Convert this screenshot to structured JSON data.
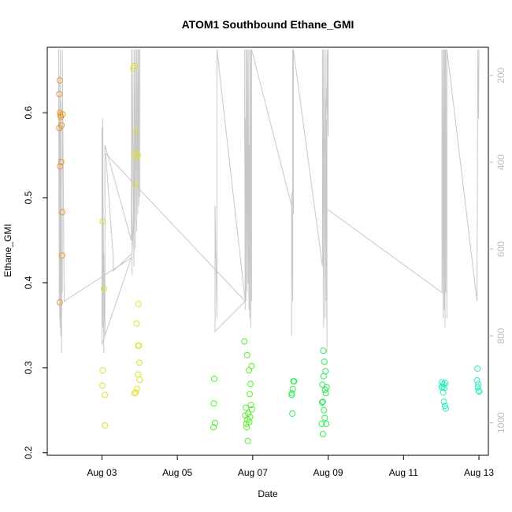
{
  "chart_data": {
    "type": "scatter",
    "title": "ATOM1 Southbound Ethane_GMI",
    "xlabel": "Date",
    "ylabel": "Ethane_GMI",
    "xlim": [
      1.55,
      13.25
    ],
    "ylim": [
      0.197,
      0.677
    ],
    "y2lim": [
      1075,
      135
    ],
    "x_ticks": [
      {
        "value": 3,
        "label": "Aug 03"
      },
      {
        "value": 5,
        "label": "Aug 05"
      },
      {
        "value": 7,
        "label": "Aug 07"
      },
      {
        "value": 9,
        "label": "Aug 09"
      },
      {
        "value": 11,
        "label": "Aug 11"
      },
      {
        "value": 13,
        "label": "Aug 13"
      }
    ],
    "y_ticks": [
      0.2,
      0.3,
      0.4,
      0.5,
      0.6
    ],
    "y2_ticks": [
      200,
      400,
      600,
      800,
      1000
    ],
    "grid": false,
    "legend": "none",
    "colors": {
      "axis": "#000000",
      "secondary_axis": "#bdbdbd",
      "altitude_line": "#c8c8c8"
    },
    "series": [
      {
        "color": "#e69a2e",
        "points": [
          [
            1.88,
            0.638
          ],
          [
            1.87,
            0.622
          ],
          [
            1.89,
            0.6
          ],
          [
            1.9,
            0.597
          ],
          [
            1.91,
            0.595
          ],
          [
            1.96,
            0.598
          ],
          [
            1.93,
            0.585
          ],
          [
            1.87,
            0.582
          ],
          [
            1.92,
            0.542
          ],
          [
            1.89,
            0.537
          ],
          [
            1.95,
            0.483
          ],
          [
            1.94,
            0.432
          ],
          [
            1.88,
            0.377
          ]
        ]
      },
      {
        "color": "#e0e02a",
        "points": [
          [
            3.02,
            0.472
          ],
          [
            3.05,
            0.393
          ],
          [
            3.02,
            0.297
          ],
          [
            3.01,
            0.279
          ],
          [
            3.08,
            0.268
          ],
          [
            3.08,
            0.232
          ],
          [
            3.83,
            0.652
          ],
          [
            3.86,
            0.655
          ],
          [
            3.9,
            0.578
          ],
          [
            3.87,
            0.553
          ],
          [
            3.92,
            0.548
          ],
          [
            3.95,
            0.55
          ],
          [
            3.88,
            0.515
          ],
          [
            3.97,
            0.375
          ],
          [
            3.92,
            0.352
          ],
          [
            3.98,
            0.326
          ],
          [
            3.96,
            0.326
          ],
          [
            3.99,
            0.306
          ],
          [
            3.96,
            0.292
          ],
          [
            4.0,
            0.286
          ],
          [
            3.93,
            0.275
          ],
          [
            3.9,
            0.271
          ],
          [
            3.87,
            0.27
          ]
        ]
      },
      {
        "color": "#55ee2a",
        "points": [
          [
            5.98,
            0.287
          ],
          [
            5.97,
            0.258
          ],
          [
            6.0,
            0.235
          ],
          [
            5.96,
            0.23
          ],
          [
            6.78,
            0.331
          ],
          [
            6.85,
            0.315
          ],
          [
            6.97,
            0.302
          ],
          [
            6.9,
            0.297
          ],
          [
            6.94,
            0.281
          ],
          [
            6.92,
            0.269
          ],
          [
            6.95,
            0.256
          ],
          [
            6.82,
            0.253
          ],
          [
            6.98,
            0.251
          ],
          [
            6.88,
            0.246
          ],
          [
            6.8,
            0.244
          ],
          [
            6.93,
            0.242
          ],
          [
            6.86,
            0.239
          ],
          [
            6.91,
            0.236
          ],
          [
            6.83,
            0.234
          ],
          [
            6.84,
            0.23
          ],
          [
            6.87,
            0.214
          ]
        ]
      },
      {
        "color": "#2aee55",
        "points": [
          [
            8.08,
            0.284
          ],
          [
            8.1,
            0.284
          ],
          [
            8.06,
            0.275
          ],
          [
            8.04,
            0.27
          ],
          [
            8.03,
            0.268
          ],
          [
            8.05,
            0.246
          ],
          [
            8.87,
            0.32
          ],
          [
            8.9,
            0.307
          ],
          [
            8.93,
            0.296
          ],
          [
            8.88,
            0.29
          ],
          [
            8.85,
            0.28
          ],
          [
            8.96,
            0.277
          ],
          [
            8.92,
            0.274
          ],
          [
            8.94,
            0.27
          ],
          [
            8.86,
            0.26
          ],
          [
            8.84,
            0.259
          ],
          [
            8.89,
            0.25
          ],
          [
            8.91,
            0.241
          ],
          [
            8.83,
            0.234
          ],
          [
            8.95,
            0.234
          ],
          [
            8.86,
            0.222
          ]
        ]
      },
      {
        "color": "#2aeec0",
        "points": [
          [
            12.02,
            0.283
          ],
          [
            12.06,
            0.281
          ],
          [
            12.11,
            0.282
          ],
          [
            12.04,
            0.278
          ],
          [
            12.01,
            0.277
          ],
          [
            12.08,
            0.276
          ],
          [
            12.05,
            0.271
          ],
          [
            12.07,
            0.26
          ],
          [
            12.1,
            0.255
          ],
          [
            12.12,
            0.252
          ],
          [
            12.96,
            0.299
          ],
          [
            12.95,
            0.285
          ],
          [
            12.98,
            0.281
          ],
          [
            12.97,
            0.277
          ],
          [
            12.99,
            0.273
          ],
          [
            13.01,
            0.272
          ]
        ]
      }
    ],
    "altitude_trace": [
      [
        1.85,
        140
      ],
      [
        1.86,
        520
      ],
      [
        1.86,
        300
      ],
      [
        1.87,
        720
      ],
      [
        1.87,
        400
      ],
      [
        1.88,
        760
      ],
      [
        1.88,
        200
      ],
      [
        1.89,
        780
      ],
      [
        1.89,
        140
      ],
      [
        1.91,
        800
      ],
      [
        1.91,
        260
      ],
      [
        1.93,
        840
      ],
      [
        1.93,
        620
      ],
      [
        1.95,
        700
      ],
      [
        1.95,
        140
      ],
      [
        2.0,
        720
      ],
      [
        3.78,
        620
      ],
      [
        3.0,
        820
      ],
      [
        3.0,
        320
      ],
      [
        3.02,
        780
      ],
      [
        3.02,
        300
      ],
      [
        3.05,
        840
      ],
      [
        3.05,
        610
      ],
      [
        3.08,
        800
      ],
      [
        3.08,
        360
      ],
      [
        3.78,
        580
      ],
      [
        3.79,
        140
      ],
      [
        3.8,
        660
      ],
      [
        3.8,
        140
      ],
      [
        3.85,
        640
      ],
      [
        3.85,
        140
      ],
      [
        3.88,
        600
      ],
      [
        3.88,
        140
      ],
      [
        3.92,
        560
      ],
      [
        3.92,
        140
      ],
      [
        3.95,
        520
      ],
      [
        3.95,
        140
      ],
      [
        3.98,
        500
      ],
      [
        3.98,
        140
      ],
      [
        4.0,
        480
      ],
      [
        4.0,
        140
      ],
      [
        3.8,
        610
      ],
      [
        3.3,
        650
      ],
      [
        3.3,
        620
      ],
      [
        3.1,
        380
      ],
      [
        6.8,
        720
      ],
      [
        6.0,
        790
      ],
      [
        6.0,
        500
      ],
      [
        6.05,
        760
      ],
      [
        6.05,
        140
      ],
      [
        6.8,
        720
      ],
      [
        6.78,
        140
      ],
      [
        6.8,
        740
      ],
      [
        6.8,
        300
      ],
      [
        6.82,
        720
      ],
      [
        6.82,
        140
      ],
      [
        6.85,
        700
      ],
      [
        6.85,
        140
      ],
      [
        6.88,
        680
      ],
      [
        6.88,
        140
      ],
      [
        6.9,
        740
      ],
      [
        6.9,
        360
      ],
      [
        6.92,
        760
      ],
      [
        6.92,
        140
      ],
      [
        6.95,
        780
      ],
      [
        6.95,
        140
      ],
      [
        6.97,
        720
      ],
      [
        6.97,
        140
      ],
      [
        6.97,
        140
      ],
      [
        6.97,
        140
      ],
      [
        8.03,
        500
      ],
      [
        8.03,
        800
      ],
      [
        8.03,
        470
      ],
      [
        8.06,
        720
      ],
      [
        8.06,
        140
      ],
      [
        8.08,
        520
      ],
      [
        8.08,
        140
      ],
      [
        8.85,
        640
      ],
      [
        8.85,
        600
      ],
      [
        8.85,
        140
      ],
      [
        8.88,
        780
      ],
      [
        8.88,
        140
      ],
      [
        8.92,
        760
      ],
      [
        8.92,
        140
      ],
      [
        8.95,
        720
      ],
      [
        8.95,
        300
      ],
      [
        8.97,
        840
      ],
      [
        8.97,
        140
      ],
      [
        9.0,
        340
      ],
      [
        9.0,
        140
      ],
      [
        8.85,
        500
      ],
      [
        12.02,
        700
      ],
      [
        12.02,
        140
      ],
      [
        12.05,
        760
      ],
      [
        12.05,
        140
      ],
      [
        12.08,
        740
      ],
      [
        12.08,
        140
      ],
      [
        12.1,
        780
      ],
      [
        12.1,
        140
      ],
      [
        12.12,
        700
      ],
      [
        12.12,
        140
      ],
      [
        12.15,
        760
      ],
      [
        12.15,
        140
      ],
      [
        12.95,
        720
      ],
      [
        12.95,
        720
      ],
      [
        12.97,
        140
      ],
      [
        12.99,
        300
      ],
      [
        13.0,
        140
      ]
    ]
  }
}
